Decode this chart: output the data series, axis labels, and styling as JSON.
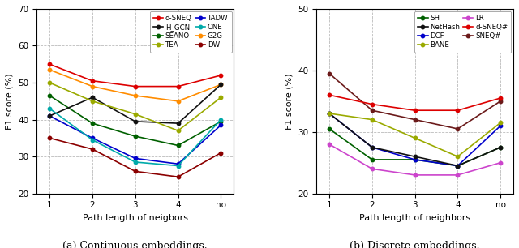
{
  "x_labels": [
    "1",
    "2",
    "3",
    "4",
    "no"
  ],
  "x_vals": [
    0,
    1,
    2,
    3,
    4
  ],
  "plot_a": {
    "ylabel": "F1 score (%)",
    "xlabel": "Path length of neigbors",
    "ylim": [
      20,
      70
    ],
    "yticks": [
      20,
      30,
      40,
      50,
      60,
      70
    ],
    "caption": "(a) Continuous embeddings.",
    "series": [
      {
        "label": "d-SNEQ",
        "color": "#dd0000",
        "values": [
          55.0,
          50.5,
          49.0,
          49.0,
          52.0
        ]
      },
      {
        "label": "SEANO",
        "color": "#006000",
        "values": [
          46.5,
          39.0,
          35.5,
          33.0,
          39.5
        ]
      },
      {
        "label": "TADW",
        "color": "#0000cc",
        "values": [
          41.0,
          35.0,
          29.5,
          28.0,
          38.5
        ]
      },
      {
        "label": "G2G",
        "color": "#ff8c00",
        "values": [
          53.5,
          49.0,
          46.5,
          45.0,
          49.5
        ]
      },
      {
        "label": "H_GCN",
        "color": "#111111",
        "values": [
          41.0,
          46.0,
          39.5,
          39.0,
          49.5
        ]
      },
      {
        "label": "TEA",
        "color": "#9aaa00",
        "values": [
          50.0,
          45.0,
          41.5,
          37.0,
          46.0
        ]
      },
      {
        "label": "ONE",
        "color": "#00aaaa",
        "values": [
          43.0,
          34.5,
          28.5,
          27.5,
          40.0
        ]
      },
      {
        "label": "DW",
        "color": "#8b0000",
        "values": [
          35.0,
          32.0,
          26.0,
          24.5,
          31.0
        ]
      }
    ],
    "legend_order": [
      0,
      1,
      2,
      3,
      4,
      5,
      6,
      7
    ]
  },
  "plot_b": {
    "ylabel": "F1 score (%)",
    "xlabel": "Path length of neighbors",
    "ylim": [
      20,
      50
    ],
    "yticks": [
      20,
      30,
      40,
      50
    ],
    "caption": "(b) Discrete embeddings.",
    "series": [
      {
        "label": "SH",
        "color": "#006000",
        "values": [
          30.5,
          25.5,
          25.5,
          24.5,
          27.5
        ]
      },
      {
        "label": "DCF",
        "color": "#0000cc",
        "values": [
          33.0,
          27.5,
          25.5,
          24.5,
          31.0
        ]
      },
      {
        "label": "LR",
        "color": "#cc44cc",
        "values": [
          28.0,
          24.0,
          23.0,
          23.0,
          25.0
        ]
      },
      {
        "label": "SNEQ#",
        "color": "#6b1a1a",
        "values": [
          39.5,
          33.5,
          32.0,
          30.5,
          35.0
        ]
      },
      {
        "label": "NetHash",
        "color": "#111111",
        "values": [
          33.0,
          27.5,
          26.0,
          24.5,
          27.5
        ]
      },
      {
        "label": "BANE",
        "color": "#9aaa00",
        "values": [
          33.0,
          32.0,
          29.0,
          26.0,
          31.5
        ]
      },
      {
        "label": "d-SNEQ#",
        "color": "#dd0000",
        "values": [
          36.0,
          34.5,
          33.5,
          33.5,
          35.5
        ]
      }
    ]
  }
}
